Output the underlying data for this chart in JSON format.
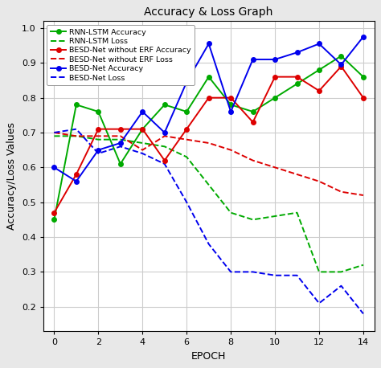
{
  "title": "Accuracy & Loss Graph",
  "xlabel": "EPOCH",
  "ylabel": "Accuracy/Loss Values",
  "epochs": [
    0,
    1,
    2,
    3,
    4,
    5,
    6,
    7,
    8,
    9,
    10,
    11,
    12,
    13,
    14
  ],
  "rnn_lstm_accuracy": [
    0.45,
    0.78,
    0.76,
    0.61,
    0.71,
    0.78,
    0.76,
    0.86,
    0.78,
    0.76,
    0.8,
    0.84,
    0.88,
    0.92,
    0.86
  ],
  "rnn_lstm_loss": [
    0.69,
    0.69,
    0.68,
    0.68,
    0.67,
    0.66,
    0.63,
    0.55,
    0.47,
    0.45,
    0.46,
    0.47,
    0.3,
    0.3,
    0.32
  ],
  "besd_no_erf_accuracy": [
    0.47,
    0.58,
    0.71,
    0.71,
    0.71,
    0.62,
    0.71,
    0.8,
    0.8,
    0.73,
    0.86,
    0.86,
    0.82,
    0.89,
    0.8
  ],
  "besd_no_erf_loss": [
    0.7,
    0.69,
    0.69,
    0.69,
    0.65,
    0.69,
    0.68,
    0.67,
    0.65,
    0.62,
    0.6,
    0.58,
    0.56,
    0.53,
    0.52
  ],
  "besd_accuracy": [
    0.6,
    0.56,
    0.65,
    0.67,
    0.76,
    0.7,
    0.845,
    0.955,
    0.76,
    0.91,
    0.91,
    0.93,
    0.955,
    0.895,
    0.975
  ],
  "besd_loss": [
    0.7,
    0.71,
    0.64,
    0.66,
    0.64,
    0.61,
    0.5,
    0.38,
    0.3,
    0.3,
    0.29,
    0.29,
    0.21,
    0.26,
    0.18
  ],
  "color_green": "#00AA00",
  "color_red": "#DD0000",
  "color_blue": "#0000EE",
  "ylim": [
    0.13,
    1.02
  ],
  "xlim": [
    -0.5,
    14.5
  ],
  "fig_bg_color": "#e8e8e8",
  "plot_bg_color": "#ffffff",
  "xticks": [
    0,
    2,
    4,
    6,
    8,
    10,
    12,
    14
  ],
  "yticks": [
    0.2,
    0.3,
    0.4,
    0.5,
    0.6,
    0.7,
    0.8,
    0.9,
    1.0
  ],
  "title_fontsize": 10,
  "label_fontsize": 9,
  "tick_fontsize": 8,
  "legend_fontsize": 6.8,
  "linewidth": 1.4,
  "markersize": 4
}
